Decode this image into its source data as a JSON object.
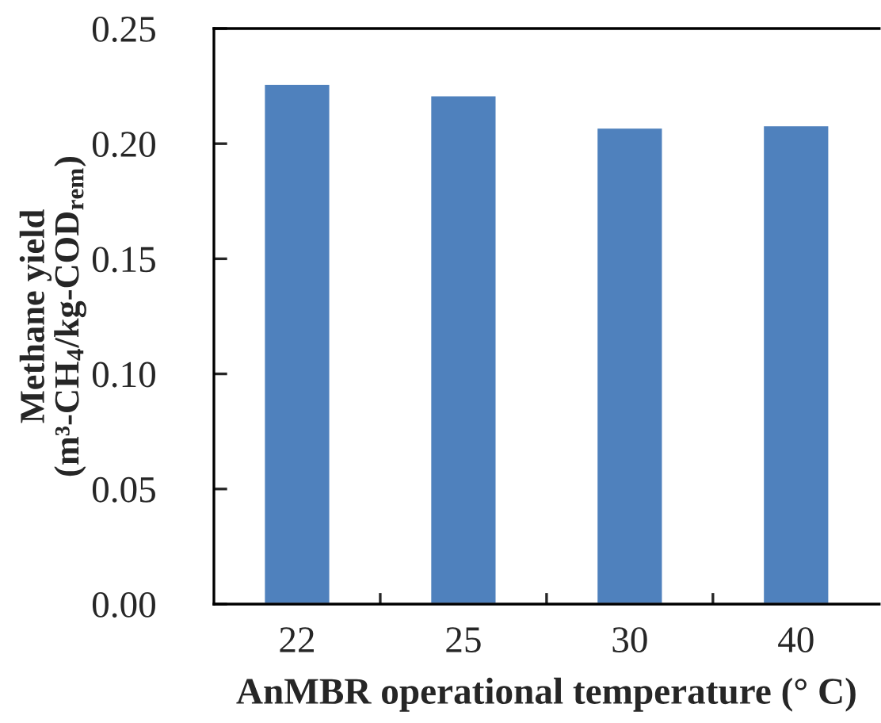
{
  "chart_data": {
    "type": "bar",
    "xlabel": "AnMBR operational temperature (° C)",
    "ylabel": "Methane yield\n(m³-CH$_{4}$/kg-COD$_{rem}$)",
    "categories": [
      "22",
      "25",
      "30",
      "40"
    ],
    "values": [
      0.226,
      0.221,
      0.207,
      0.208
    ],
    "color": "#4f81bd",
    "ylim": [
      0,
      0.25
    ],
    "yticks": [
      {
        "value": 0,
        "label": "0.00"
      },
      {
        "value": 0.05,
        "label": "0.05"
      },
      {
        "value": 0.1,
        "label": "0.10"
      },
      {
        "value": 0.15,
        "label": "0.15"
      },
      {
        "value": 0.2,
        "label": "0.20"
      },
      {
        "value": 0.25,
        "label": "0.25"
      }
    ],
    "grid": false,
    "legend": false
  }
}
